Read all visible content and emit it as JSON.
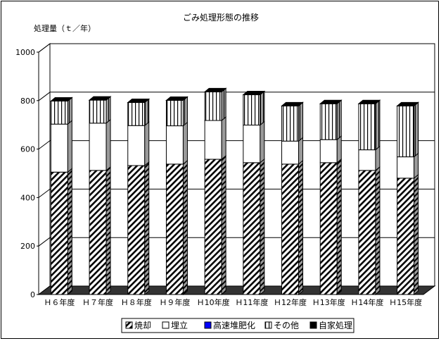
{
  "chart_data": {
    "type": "bar",
    "stacked": true,
    "style": "3d",
    "title": "ごみ処理形態の推移",
    "ylabel": "処理量（ｔ／年）",
    "xlabel": "",
    "ylim": [
      0,
      1000
    ],
    "ytick_step": 200,
    "grid": true,
    "legend_position": "bottom",
    "categories": [
      "Ｈ６年度",
      "Ｈ７年度",
      "Ｈ８年度",
      "Ｈ９年度",
      "Ｈ10年度",
      "Ｈ11年度",
      "Ｈ12年度",
      "Ｈ13年度",
      "Ｈ14年度",
      "Ｈ15年度"
    ],
    "series": [
      {
        "name": "焼却",
        "pattern": "hatch",
        "values": [
          505,
          512,
          532,
          538,
          558,
          544,
          538,
          544,
          512,
          480
        ]
      },
      {
        "name": "埋立",
        "pattern": "white",
        "values": [
          198,
          195,
          165,
          158,
          160,
          155,
          95,
          95,
          85,
          88
        ]
      },
      {
        "name": "高速堆肥化",
        "pattern": "blue",
        "values": [
          0,
          0,
          0,
          0,
          0,
          0,
          0,
          0,
          0,
          0
        ]
      },
      {
        "name": "その他",
        "pattern": "vertical",
        "values": [
          95,
          95,
          95,
          105,
          118,
          125,
          145,
          148,
          190,
          210
        ]
      },
      {
        "name": "自家処理",
        "pattern": "black",
        "values": [
          0,
          0,
          0,
          0,
          0,
          0,
          0,
          0,
          0,
          0
        ]
      }
    ]
  },
  "colors": {
    "hatch_fill": "#ffffff",
    "line": "#000000",
    "blue": "#0000ff",
    "black": "#000000",
    "floor": "#333333"
  }
}
